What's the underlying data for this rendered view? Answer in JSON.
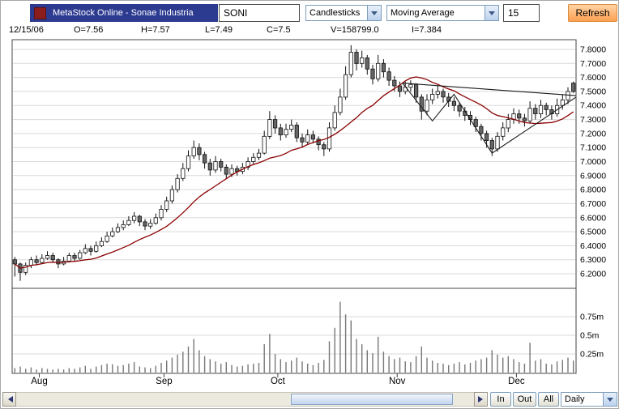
{
  "window": {
    "title_bar": "MetaStock Online - Sonae Industria"
  },
  "toolbar": {
    "symbol_input": "SONI",
    "chart_type_select": "Candlesticks",
    "indicator_select": "Moving Average",
    "indicator_period_input": "15",
    "refresh_button": "Refresh"
  },
  "quote_bar": {
    "date": "12/15/06",
    "open": "O=7.56",
    "high": "H=7.57",
    "low": "L=7.49",
    "close": "C=7.5",
    "volume": "V=158799.0",
    "indicator": "I=7.384"
  },
  "bottom_bar": {
    "zoom_in_button": "In",
    "zoom_out_button": "Out",
    "zoom_all_button": "All",
    "periodicity_select": "Daily"
  },
  "chart_data": {
    "type": "candlestick",
    "panes": [
      "price",
      "volume"
    ],
    "price_axis": {
      "min": 6.2,
      "max": 7.8,
      "tick_step": 0.1,
      "tick_values": [
        7.8,
        7.7,
        7.6,
        7.5,
        7.4,
        7.3,
        7.2,
        7.1,
        7.0,
        6.9,
        6.8,
        6.7,
        6.6,
        6.5,
        6.4,
        6.3,
        6.2
      ],
      "tick_labels": [
        "7.8000",
        "7.7000",
        "7.6000",
        "7.5000",
        "7.4000",
        "7.3000",
        "7.2000",
        "7.1000",
        "7.0000",
        "6.9000",
        "6.8000",
        "6.7000",
        "6.6000",
        "6.5000",
        "6.4000",
        "6.3000",
        "6.2000"
      ]
    },
    "volume_axis": {
      "unit": "millions",
      "tick_values": [
        0.75,
        0.5,
        0.25
      ],
      "tick_labels": [
        "0.75m",
        "0.5m",
        "0.25m"
      ]
    },
    "x_axis": {
      "tick_labels": [
        "Aug",
        "Sep",
        "Oct",
        "Nov",
        "Dec"
      ],
      "tick_indices": [
        5,
        28,
        49,
        71,
        93
      ]
    },
    "overlays": {
      "moving_average": {
        "period": 15,
        "color": "#8b0000"
      }
    },
    "trendlines": [
      [
        [
          72,
          7.56
        ],
        [
          104,
          7.47
        ]
      ],
      [
        [
          72,
          7.56
        ],
        [
          77.5,
          7.29
        ],
        [
          81.5,
          7.48
        ],
        [
          88.5,
          7.06
        ],
        [
          104,
          7.46
        ]
      ]
    ],
    "candles_ohlcv": [
      [
        6.3,
        6.32,
        6.18,
        6.27,
        0.06
      ],
      [
        6.27,
        6.28,
        6.15,
        6.21,
        0.08
      ],
      [
        6.21,
        6.28,
        6.19,
        6.26,
        0.05
      ],
      [
        6.26,
        6.32,
        6.24,
        6.3,
        0.07
      ],
      [
        6.3,
        6.33,
        6.26,
        6.28,
        0.04
      ],
      [
        6.28,
        6.34,
        6.27,
        6.31,
        0.06
      ],
      [
        6.31,
        6.36,
        6.3,
        6.33,
        0.05
      ],
      [
        6.33,
        6.35,
        6.28,
        6.3,
        0.04
      ],
      [
        6.3,
        6.31,
        6.24,
        6.27,
        0.05
      ],
      [
        6.27,
        6.32,
        6.26,
        6.29,
        0.04
      ],
      [
        6.29,
        6.35,
        6.28,
        6.33,
        0.06
      ],
      [
        6.33,
        6.35,
        6.29,
        6.31,
        0.05
      ],
      [
        6.31,
        6.37,
        6.3,
        6.35,
        0.07
      ],
      [
        6.35,
        6.41,
        6.34,
        6.38,
        0.09
      ],
      [
        6.38,
        6.4,
        6.33,
        6.36,
        0.05
      ],
      [
        6.36,
        6.43,
        6.35,
        6.4,
        0.08
      ],
      [
        6.4,
        6.46,
        6.39,
        6.43,
        0.1
      ],
      [
        6.43,
        6.5,
        6.42,
        6.47,
        0.12
      ],
      [
        6.47,
        6.53,
        6.46,
        6.5,
        0.11
      ],
      [
        6.5,
        6.56,
        6.49,
        6.53,
        0.09
      ],
      [
        6.53,
        6.58,
        6.51,
        6.55,
        0.1
      ],
      [
        6.55,
        6.61,
        6.54,
        6.58,
        0.12
      ],
      [
        6.58,
        6.64,
        6.56,
        6.61,
        0.14
      ],
      [
        6.61,
        6.62,
        6.54,
        6.57,
        0.08
      ],
      [
        6.57,
        6.59,
        6.51,
        6.54,
        0.07
      ],
      [
        6.54,
        6.59,
        6.52,
        6.56,
        0.06
      ],
      [
        6.56,
        6.63,
        6.55,
        6.6,
        0.09
      ],
      [
        6.6,
        6.69,
        6.58,
        6.66,
        0.13
      ],
      [
        6.66,
        6.75,
        6.64,
        6.72,
        0.16
      ],
      [
        6.72,
        6.83,
        6.7,
        6.8,
        0.2
      ],
      [
        6.8,
        6.91,
        6.78,
        6.88,
        0.24
      ],
      [
        6.88,
        6.99,
        6.86,
        6.95,
        0.28
      ],
      [
        6.95,
        7.08,
        6.93,
        7.04,
        0.35
      ],
      [
        7.04,
        7.15,
        7.02,
        7.1,
        0.45
      ],
      [
        7.1,
        7.13,
        7.01,
        7.05,
        0.3
      ],
      [
        7.05,
        7.07,
        6.95,
        6.99,
        0.22
      ],
      [
        6.99,
        7.02,
        6.9,
        6.94,
        0.18
      ],
      [
        6.94,
        7.04,
        6.92,
        7.0,
        0.15
      ],
      [
        7.0,
        7.02,
        6.93,
        6.96,
        0.12
      ],
      [
        6.96,
        6.98,
        6.88,
        6.91,
        0.14
      ],
      [
        6.91,
        6.98,
        6.89,
        6.95,
        0.1
      ],
      [
        6.95,
        6.97,
        6.9,
        6.93,
        0.08
      ],
      [
        6.93,
        6.99,
        6.91,
        6.96,
        0.09
      ],
      [
        6.96,
        7.03,
        6.94,
        7.0,
        0.11
      ],
      [
        7.0,
        7.06,
        6.98,
        7.03,
        0.12
      ],
      [
        7.03,
        7.09,
        7.01,
        7.06,
        0.13
      ],
      [
        7.06,
        7.22,
        7.05,
        7.18,
        0.38
      ],
      [
        7.18,
        7.36,
        7.16,
        7.3,
        0.52
      ],
      [
        7.3,
        7.33,
        7.2,
        7.24,
        0.25
      ],
      [
        7.24,
        7.27,
        7.15,
        7.19,
        0.18
      ],
      [
        7.19,
        7.27,
        7.17,
        7.23,
        0.14
      ],
      [
        7.23,
        7.3,
        7.21,
        7.26,
        0.16
      ],
      [
        7.26,
        7.28,
        7.14,
        7.17,
        0.2
      ],
      [
        7.17,
        7.2,
        7.1,
        7.14,
        0.15
      ],
      [
        7.14,
        7.23,
        7.12,
        7.19,
        0.12
      ],
      [
        7.19,
        7.22,
        7.13,
        7.16,
        0.1
      ],
      [
        7.16,
        7.18,
        7.08,
        7.12,
        0.13
      ],
      [
        7.12,
        7.14,
        7.04,
        7.09,
        0.17
      ],
      [
        7.09,
        7.28,
        7.07,
        7.24,
        0.42
      ],
      [
        7.24,
        7.4,
        7.22,
        7.35,
        0.6
      ],
      [
        7.35,
        7.52,
        7.33,
        7.46,
        0.95
      ],
      [
        7.46,
        7.68,
        7.44,
        7.62,
        0.78
      ],
      [
        7.62,
        7.83,
        7.6,
        7.78,
        0.7
      ],
      [
        7.78,
        7.8,
        7.65,
        7.7,
        0.45
      ],
      [
        7.7,
        7.79,
        7.67,
        7.74,
        0.38
      ],
      [
        7.74,
        7.76,
        7.62,
        7.66,
        0.3
      ],
      [
        7.66,
        7.69,
        7.55,
        7.59,
        0.26
      ],
      [
        7.59,
        7.76,
        7.57,
        7.7,
        0.48
      ],
      [
        7.7,
        7.73,
        7.6,
        7.64,
        0.28
      ],
      [
        7.64,
        7.67,
        7.54,
        7.58,
        0.22
      ],
      [
        7.58,
        7.61,
        7.5,
        7.54,
        0.18
      ],
      [
        7.54,
        7.57,
        7.46,
        7.5,
        0.2
      ],
      [
        7.5,
        7.57,
        7.48,
        7.53,
        0.15
      ],
      [
        7.53,
        7.58,
        7.5,
        7.55,
        0.14
      ],
      [
        7.55,
        7.56,
        7.42,
        7.46,
        0.22
      ],
      [
        7.46,
        7.48,
        7.3,
        7.36,
        0.35
      ],
      [
        7.36,
        7.48,
        7.33,
        7.44,
        0.2
      ],
      [
        7.44,
        7.52,
        7.41,
        7.48,
        0.16
      ],
      [
        7.48,
        7.54,
        7.45,
        7.5,
        0.13
      ],
      [
        7.5,
        7.52,
        7.42,
        7.46,
        0.12
      ],
      [
        7.46,
        7.49,
        7.39,
        7.43,
        0.1
      ],
      [
        7.43,
        7.46,
        7.36,
        7.4,
        0.12
      ],
      [
        7.4,
        7.42,
        7.32,
        7.36,
        0.14
      ],
      [
        7.36,
        7.39,
        7.29,
        7.33,
        0.11
      ],
      [
        7.33,
        7.36,
        7.26,
        7.3,
        0.13
      ],
      [
        7.3,
        7.32,
        7.21,
        7.25,
        0.16
      ],
      [
        7.25,
        7.27,
        7.15,
        7.2,
        0.18
      ],
      [
        7.2,
        7.22,
        7.1,
        7.15,
        0.2
      ],
      [
        7.15,
        7.17,
        7.04,
        7.09,
        0.3
      ],
      [
        7.09,
        7.21,
        7.07,
        7.18,
        0.24
      ],
      [
        7.18,
        7.28,
        7.15,
        7.24,
        0.2
      ],
      [
        7.24,
        7.34,
        7.21,
        7.3,
        0.22
      ],
      [
        7.3,
        7.38,
        7.27,
        7.34,
        0.18
      ],
      [
        7.34,
        7.37,
        7.27,
        7.31,
        0.14
      ],
      [
        7.31,
        7.34,
        7.25,
        7.29,
        0.12
      ],
      [
        7.29,
        7.43,
        7.27,
        7.38,
        0.4
      ],
      [
        7.38,
        7.41,
        7.3,
        7.34,
        0.16
      ],
      [
        7.34,
        7.44,
        7.31,
        7.4,
        0.18
      ],
      [
        7.4,
        7.42,
        7.33,
        7.37,
        0.12
      ],
      [
        7.37,
        7.4,
        7.3,
        7.34,
        0.11
      ],
      [
        7.34,
        7.45,
        7.32,
        7.4,
        0.15
      ],
      [
        7.4,
        7.48,
        7.37,
        7.44,
        0.17
      ],
      [
        7.44,
        7.53,
        7.41,
        7.5,
        0.2
      ],
      [
        7.56,
        7.57,
        7.49,
        7.5,
        0.16
      ]
    ],
    "colors": {
      "up_fill": "#ffffff",
      "down_fill": "#666666",
      "outline": "#111111",
      "grid": "#d9d9d9",
      "volume_bar": "#777777",
      "trendline": "#1a1a1a",
      "border": "#444444"
    }
  }
}
